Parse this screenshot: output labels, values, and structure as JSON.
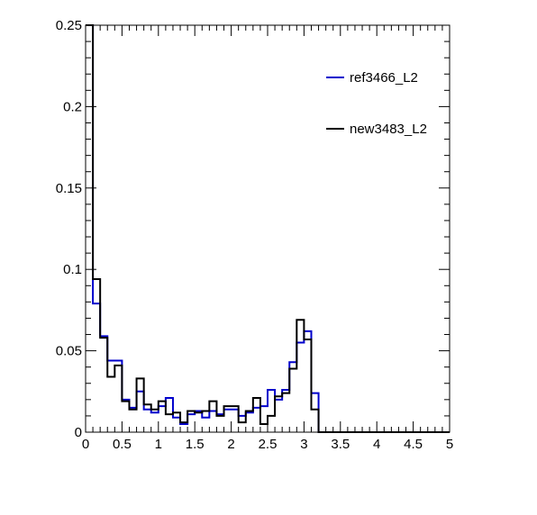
{
  "chart_data": {
    "type": "line",
    "title": "",
    "xlabel": "",
    "ylabel": "",
    "xlim": [
      0,
      5
    ],
    "ylim": [
      0,
      0.25
    ],
    "bin_width": 0.1,
    "x_ticks": [
      "0",
      "0.5",
      "1",
      "1.5",
      "2",
      "2.5",
      "3",
      "3.5",
      "4",
      "4.5",
      "5"
    ],
    "y_ticks": [
      "0",
      "0.05",
      "0.1",
      "0.15",
      "0.2",
      "0.25"
    ],
    "legend_position": "top-right",
    "grid": false,
    "series": [
      {
        "name": "ref3466_L2",
        "color": "#0000cc",
        "values": [
          0.25,
          0.079,
          0.059,
          0.044,
          0.044,
          0.02,
          0.015,
          0.025,
          0.014,
          0.012,
          0.016,
          0.021,
          0.009,
          0.005,
          0.011,
          0.013,
          0.009,
          0.013,
          0.011,
          0.014,
          0.014,
          0.01,
          0.012,
          0.015,
          0.016,
          0.026,
          0.02,
          0.026,
          0.043,
          0.055,
          0.062,
          0.024,
          0,
          0,
          0,
          0,
          0,
          0,
          0,
          0,
          0,
          0,
          0,
          0,
          0,
          0,
          0,
          0,
          0,
          0
        ]
      },
      {
        "name": "new3483_L2",
        "color": "#000000",
        "values": [
          0.25,
          0.094,
          0.058,
          0.034,
          0.041,
          0.019,
          0.014,
          0.033,
          0.017,
          0.014,
          0.019,
          0.011,
          0.012,
          0.006,
          0.013,
          0.012,
          0.013,
          0.019,
          0.01,
          0.016,
          0.016,
          0.006,
          0.013,
          0.021,
          0.005,
          0.01,
          0.022,
          0.024,
          0.039,
          0.069,
          0.057,
          0.014,
          0,
          0,
          0,
          0,
          0,
          0,
          0,
          0,
          0,
          0,
          0,
          0,
          0,
          0,
          0,
          0,
          0,
          0
        ]
      }
    ]
  }
}
